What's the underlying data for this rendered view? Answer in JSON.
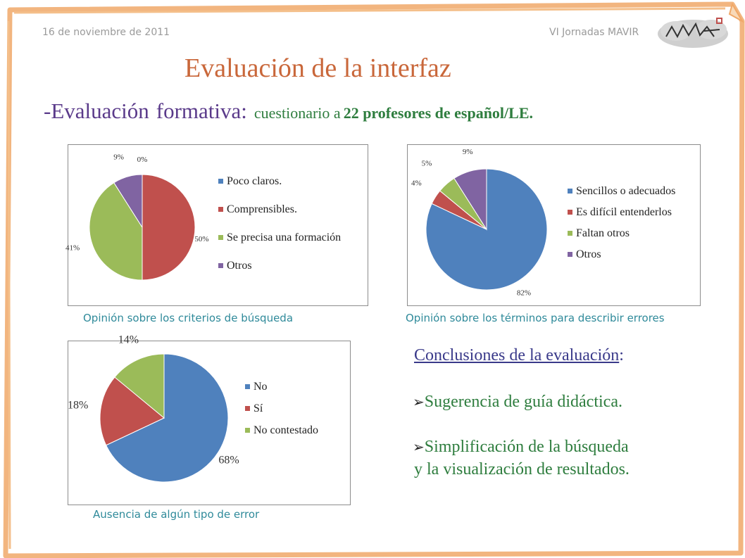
{
  "header": {
    "date": "16 de noviembre de 2011",
    "event": "VI Jornadas MAVIR",
    "logo_text": "MAVIR"
  },
  "title": "Evaluación de la interfaz",
  "subtitle": {
    "part1": "-Evaluación",
    "part2": "formativa:",
    "part3": "cuestionario a",
    "part4": "22 profesores de español/LE."
  },
  "colors": {
    "blue": "#4f81bd",
    "red": "#c0504d",
    "green": "#9bbb59",
    "purple": "#8064a2"
  },
  "chart_data": [
    {
      "type": "pie",
      "caption": "Opinión sobre los criterios de búsqueda",
      "categories": [
        "Poco claros.",
        "Comprensibles.",
        "Se precisa una formación",
        "Otros"
      ],
      "values": [
        0,
        50,
        41,
        9
      ],
      "labels": [
        "0%",
        "50%",
        "41%",
        "9%"
      ],
      "legend": "right"
    },
    {
      "type": "pie",
      "caption": "Opinión sobre los términos para describir errores",
      "categories": [
        "Sencillos o adecuados",
        "Es difícil entenderlos",
        "Faltan otros",
        "Otros"
      ],
      "values": [
        82,
        4,
        5,
        9
      ],
      "labels": [
        "82%",
        "4%",
        "5%",
        "9%"
      ],
      "legend": "right"
    },
    {
      "type": "pie",
      "caption": "Ausencia de algún tipo de error",
      "categories": [
        "No",
        "Sí",
        "No contestado"
      ],
      "values": [
        68,
        18,
        14
      ],
      "labels": [
        "68%",
        "18%",
        "14%"
      ],
      "legend": "right"
    }
  ],
  "conclusions": {
    "title": "Conclusiones de la evaluación",
    "colon": ":",
    "items": [
      "Sugerencia de guía didáctica.",
      "Simplificación de la búsqueda",
      "y la visualización de resultados."
    ]
  }
}
